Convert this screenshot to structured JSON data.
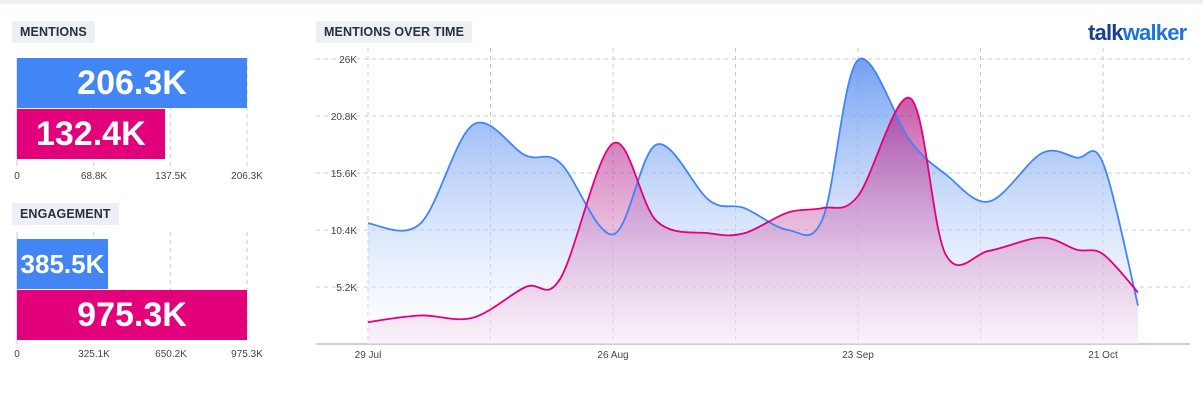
{
  "brand": {
    "part1": "talk",
    "part2": "walker",
    "color1": "#1a3f8f",
    "color2": "#1e73d8"
  },
  "colors": {
    "blue": "#4285f4",
    "pink": "#e3007b"
  },
  "mentions_panel": {
    "label": "MENTIONS",
    "ticks": [
      "0",
      "68.8K",
      "137.5K",
      "206.3K"
    ]
  },
  "engagement_panel": {
    "label": "ENGAGEMENT",
    "ticks": [
      "0",
      "325.1K",
      "650.2K",
      "975.3K"
    ]
  },
  "time_panel": {
    "label": "MENTIONS OVER TIME"
  },
  "chart_data": [
    {
      "type": "bar",
      "orientation": "horizontal",
      "series": [
        {
          "value": 206300,
          "label": "206.3K",
          "color": "#4285f4"
        },
        {
          "value": 132400,
          "label": "132.4K",
          "color": "#e3007b"
        }
      ],
      "xlim": [
        0,
        206300
      ]
    },
    {
      "type": "bar",
      "orientation": "horizontal",
      "series": [
        {
          "value": 385500,
          "label": "385.5K",
          "color": "#4285f4"
        },
        {
          "value": 975300,
          "label": "975.3K",
          "color": "#e3007b"
        }
      ],
      "xlim": [
        0,
        975300
      ]
    },
    {
      "type": "area",
      "x_ticks": [
        "29 Jul",
        "26 Aug",
        "23 Sep",
        "21 Oct"
      ],
      "y_ticks": [
        "26K",
        "20.8K",
        "15.6K",
        "10.4K",
        "5.2K"
      ],
      "ylim": [
        0,
        27000
      ],
      "grid": true,
      "series": [
        {
          "color": "#4285f4",
          "points": [
            [
              "29 Jul",
              11000
            ],
            [
              "4 Aug",
              11000
            ],
            [
              "10 Aug",
              20000
            ],
            [
              "16 Aug",
              17200
            ],
            [
              "20 Aug",
              16500
            ],
            [
              "26 Aug",
              10000
            ],
            [
              "31 Aug",
              18200
            ],
            [
              "6 Sep",
              13100
            ],
            [
              "10 Sep",
              12400
            ],
            [
              "15 Sep",
              10400
            ],
            [
              "19 Sep",
              11500
            ],
            [
              "23 Sep",
              25900
            ],
            [
              "29 Sep",
              18500
            ],
            [
              "3 Oct",
              15500
            ],
            [
              "8 Oct",
              13000
            ],
            [
              "14 Oct",
              17400
            ],
            [
              "18 Oct",
              17000
            ],
            [
              "21 Oct",
              16500
            ],
            [
              "25 Oct",
              3500
            ]
          ]
        },
        {
          "color": "#e3007b",
          "points": [
            [
              "29 Jul",
              2000
            ],
            [
              "4 Aug",
              2600
            ],
            [
              "10 Aug",
              2400
            ],
            [
              "16 Aug",
              5200
            ],
            [
              "20 Aug",
              6000
            ],
            [
              "26 Aug",
              18300
            ],
            [
              "31 Aug",
              11200
            ],
            [
              "6 Sep",
              10100
            ],
            [
              "10 Sep",
              10100
            ],
            [
              "15 Sep",
              12000
            ],
            [
              "19 Sep",
              12400
            ],
            [
              "23 Sep",
              13500
            ],
            [
              "29 Sep",
              22400
            ],
            [
              "3 Oct",
              8200
            ],
            [
              "8 Oct",
              8500
            ],
            [
              "14 Oct",
              9700
            ],
            [
              "18 Oct",
              8600
            ],
            [
              "21 Oct",
              8200
            ],
            [
              "25 Oct",
              4700
            ]
          ]
        }
      ]
    }
  ]
}
